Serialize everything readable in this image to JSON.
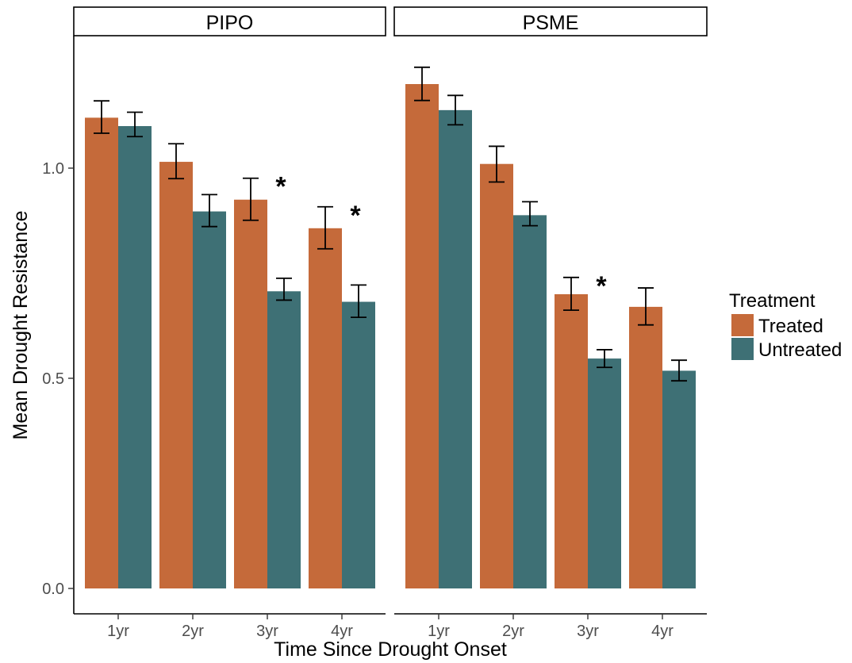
{
  "chart_data": {
    "type": "bar",
    "xlabel": "Time Since Drought Onset",
    "ylabel": "Mean Drought Resistance",
    "ylim": [
      0,
      1.29
    ],
    "yticks": [
      "0.0",
      "0.5",
      "1.0"
    ],
    "ytick_values": [
      0,
      0.5,
      1.0
    ],
    "categories": [
      "1yr",
      "2yr",
      "3yr",
      "4yr"
    ],
    "grid": false,
    "legend": {
      "title": "Treatment",
      "placement": "right",
      "entries": [
        "Treated",
        "Untreated"
      ]
    },
    "colors": {
      "Treated": "#c56a3a",
      "Untreated": "#3e7075"
    },
    "significance_marker": "*",
    "panels": [
      {
        "name": "PIPO",
        "series": [
          {
            "name": "Treated",
            "values": [
              1.12,
              1.015,
              0.925,
              0.857
            ],
            "err_low": [
              1.083,
              0.975,
              0.876,
              0.808
            ],
            "err_high": [
              1.16,
              1.058,
              0.976,
              0.908
            ]
          },
          {
            "name": "Untreated",
            "values": [
              1.1,
              0.897,
              0.707,
              0.682
            ],
            "err_low": [
              1.075,
              0.861,
              0.686,
              0.645
            ],
            "err_high": [
              1.133,
              0.937,
              0.738,
              0.722
            ]
          }
        ],
        "significant": [
          "3yr",
          "4yr"
        ]
      },
      {
        "name": "PSME",
        "series": [
          {
            "name": "Treated",
            "values": [
              1.2,
              1.01,
              0.7,
              0.67
            ],
            "err_low": [
              1.161,
              0.967,
              0.662,
              0.627
            ],
            "err_high": [
              1.24,
              1.052,
              0.74,
              0.715
            ]
          },
          {
            "name": "Untreated",
            "values": [
              1.138,
              0.888,
              0.547,
              0.518
            ],
            "err_low": [
              1.103,
              0.863,
              0.526,
              0.494
            ],
            "err_high": [
              1.173,
              0.92,
              0.568,
              0.543
            ]
          }
        ],
        "significant": [
          "3yr"
        ]
      }
    ]
  }
}
